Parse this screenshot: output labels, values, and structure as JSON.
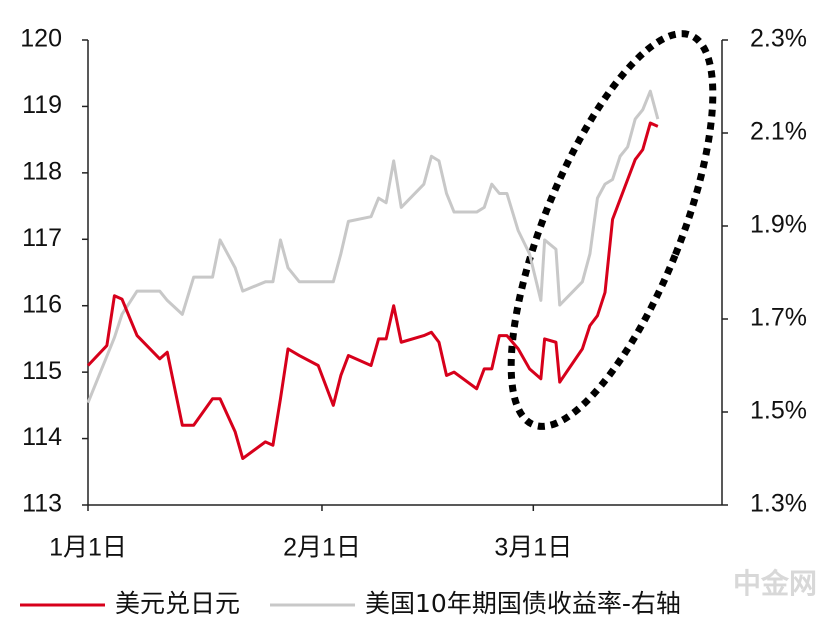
{
  "chart_data": {
    "type": "line",
    "x": [
      0,
      2.5,
      3.5,
      4.5,
      6.5,
      9.5,
      10.5,
      12.5,
      14,
      16.5,
      17.5,
      19.5,
      20.5,
      23.5,
      24.5,
      25.5,
      26.5,
      28,
      30.5,
      32.5,
      33.5,
      34.5,
      37.5,
      38.5,
      39.5,
      40.5,
      41.5,
      44.5,
      45.5,
      46.5,
      47.5,
      48.5,
      51.5,
      52.5,
      53.5,
      54.5,
      55.5,
      57,
      58.5,
      60,
      60.5,
      62,
      62.5,
      65.5,
      66.5,
      67.5,
      68.5,
      69.5,
      70.5,
      71.5,
      72.5,
      73.5,
      74.5,
      75.5
    ],
    "series": [
      {
        "name": "美元兑日元",
        "color": "#d7001b",
        "values": [
          115.1,
          115.4,
          116.15,
          116.1,
          115.55,
          115.2,
          115.3,
          114.2,
          114.2,
          114.6,
          114.6,
          114.1,
          113.7,
          113.95,
          113.9,
          114.6,
          115.35,
          115.25,
          115.1,
          114.5,
          114.95,
          115.25,
          115.1,
          115.5,
          115.5,
          116.0,
          115.45,
          115.55,
          115.6,
          115.45,
          114.95,
          115.0,
          114.75,
          115.05,
          115.05,
          115.55,
          115.55,
          115.35,
          115.05,
          114.9,
          115.5,
          115.45,
          114.85,
          115.35,
          115.7,
          115.85,
          116.2,
          117.3,
          117.6,
          117.9,
          118.2,
          118.35,
          118.75,
          118.7
        ]
      },
      {
        "name": "美国10年期国债收益率-右轴",
        "color": "#c8c8c8",
        "axis": "y2",
        "values": [
          1.52,
          1.62,
          1.66,
          1.71,
          1.76,
          1.76,
          1.74,
          1.71,
          1.79,
          1.79,
          1.87,
          1.81,
          1.76,
          1.78,
          1.78,
          1.87,
          1.81,
          1.78,
          1.78,
          1.78,
          1.84,
          1.91,
          1.92,
          1.96,
          1.95,
          2.04,
          1.94,
          1.99,
          2.05,
          2.04,
          1.97,
          1.93,
          1.93,
          1.94,
          1.99,
          1.97,
          1.97,
          1.89,
          1.84,
          1.74,
          1.87,
          1.85,
          1.73,
          1.78,
          1.84,
          1.96,
          1.99,
          2.0,
          2.05,
          2.07,
          2.13,
          2.15,
          2.19,
          2.13
        ]
      }
    ],
    "xlim": [
      0,
      84
    ],
    "xticks": [
      {
        "value": 0,
        "label": "1月1日"
      },
      {
        "value": 31,
        "label": "2月1日"
      },
      {
        "value": 59,
        "label": "3月1日"
      }
    ],
    "ylim": [
      113,
      120
    ],
    "yticks": [
      113,
      114,
      115,
      116,
      117,
      118,
      119,
      120
    ],
    "y2lim": [
      1.3,
      2.3
    ],
    "y2ticks": [
      {
        "value": 1.3,
        "label": "1.3%"
      },
      {
        "value": 1.5,
        "label": "1.5%"
      },
      {
        "value": 1.7,
        "label": "1.7%"
      },
      {
        "value": 1.9,
        "label": "1.9%"
      },
      {
        "value": 2.1,
        "label": "2.1%"
      },
      {
        "value": 2.3,
        "label": "2.3%"
      }
    ],
    "legend": "bottom",
    "grid": false,
    "watermark": "中金网"
  }
}
